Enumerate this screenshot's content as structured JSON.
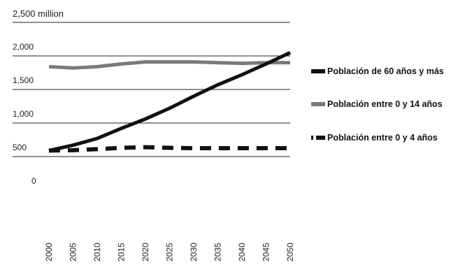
{
  "chart_data": {
    "type": "line",
    "title": "",
    "ylabel": "2,500 million",
    "xlabel": "",
    "ylim": [
      0,
      2500
    ],
    "yticks": [
      0,
      500,
      1000,
      1500,
      2000
    ],
    "ytick_labels": [
      "0",
      "500",
      "1,000",
      "1,500",
      "2,000"
    ],
    "grid": true,
    "legend_position": "right",
    "x": [
      2000,
      2005,
      2010,
      2015,
      2020,
      2025,
      2030,
      2035,
      2040,
      2045,
      2050
    ],
    "series": [
      {
        "name": "Población de 60 años y más",
        "color": "#111111",
        "style": "solid",
        "values": [
          590,
          670,
          770,
          920,
          1060,
          1220,
          1400,
          1570,
          1720,
          1880,
          2050
        ]
      },
      {
        "name": "Población entre 0 y 14 años",
        "color": "#7a7a7a",
        "style": "solid",
        "values": [
          1840,
          1820,
          1840,
          1880,
          1910,
          1910,
          1910,
          1900,
          1890,
          1900,
          1900
        ]
      },
      {
        "name": "Población entre 0 y 4 años",
        "color": "#111111",
        "style": "dashed",
        "values": [
          590,
          595,
          610,
          630,
          640,
          630,
          625,
          625,
          625,
          625,
          625
        ]
      }
    ]
  }
}
